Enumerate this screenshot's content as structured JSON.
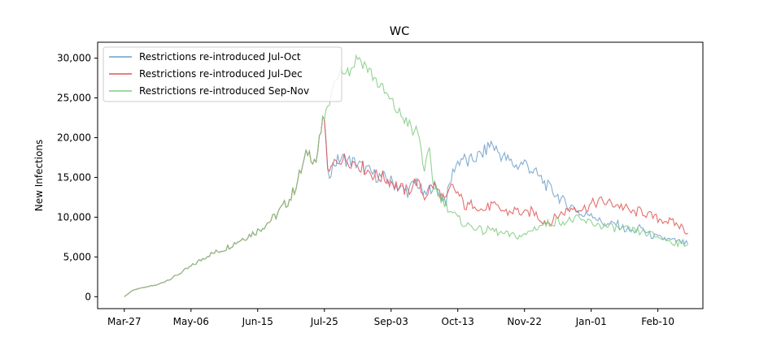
{
  "chart_data": {
    "type": "line",
    "title": "WC",
    "xlabel": "",
    "ylabel": "New Infections",
    "ylim": [
      -1500,
      32000
    ],
    "y_ticks": [
      0,
      5000,
      10000,
      15000,
      20000,
      25000,
      30000
    ],
    "y_tick_labels": [
      "0",
      "5,000",
      "10,000",
      "15,000",
      "20,000",
      "25,000",
      "30,000"
    ],
    "x_tick_labels": [
      "Mar-27",
      "May-06",
      "Jun-15",
      "Jul-25",
      "Sep-03",
      "Oct-13",
      "Nov-22",
      "Jan-01",
      "Feb-10"
    ],
    "x_tick_days": [
      0,
      40,
      80,
      120,
      160,
      200,
      240,
      280,
      320
    ],
    "xlim_days": [
      -16,
      347
    ],
    "legend_position": "top-left",
    "grid": false,
    "series": [
      {
        "name": "Restrictions re-introduced Jul-Oct",
        "color": "#6e9fc9",
        "x": [
          0,
          5,
          10,
          20,
          30,
          40,
          50,
          60,
          70,
          80,
          90,
          100,
          105,
          110,
          115,
          118,
          120,
          122,
          126,
          130,
          135,
          140,
          145,
          150,
          155,
          160,
          165,
          170,
          175,
          180,
          185,
          190,
          193,
          195,
          198,
          200,
          203,
          206,
          210,
          215,
          220,
          225,
          230,
          235,
          240,
          245,
          250,
          255,
          260,
          265,
          270,
          275,
          280,
          285,
          290,
          295,
          300,
          305,
          310,
          315,
          320,
          325,
          330,
          335,
          338
        ],
        "y": [
          0,
          800,
          1100,
          1500,
          2500,
          3800,
          5200,
          6000,
          7200,
          8300,
          10000,
          12500,
          15200,
          18300,
          17000,
          20800,
          22700,
          15200,
          16800,
          17400,
          17100,
          16700,
          16000,
          15300,
          15000,
          14500,
          13700,
          13200,
          14600,
          12600,
          14100,
          12800,
          12000,
          14000,
          16300,
          16900,
          17500,
          16800,
          17400,
          18000,
          19300,
          18000,
          17200,
          16400,
          16900,
          15800,
          14800,
          13600,
          12700,
          11600,
          11200,
          10100,
          10600,
          9500,
          9000,
          9200,
          8500,
          8200,
          8700,
          7800,
          7400,
          7200,
          7000,
          6800,
          6600
        ]
      },
      {
        "name": "Restrictions re-introduced Jul-Dec",
        "color": "#e05555",
        "x": [
          0,
          5,
          10,
          20,
          30,
          40,
          50,
          60,
          70,
          80,
          90,
          100,
          105,
          110,
          115,
          118,
          120,
          122,
          126,
          130,
          135,
          140,
          145,
          150,
          155,
          160,
          165,
          170,
          175,
          180,
          185,
          190,
          193,
          196,
          200,
          205,
          210,
          215,
          220,
          225,
          230,
          235,
          240,
          245,
          250,
          255,
          260,
          265,
          270,
          275,
          280,
          285,
          290,
          295,
          300,
          305,
          310,
          315,
          320,
          325,
          330,
          335,
          338
        ],
        "y": [
          0,
          800,
          1100,
          1500,
          2500,
          3800,
          5200,
          6000,
          7200,
          8300,
          10000,
          12500,
          15200,
          18300,
          17000,
          20800,
          22700,
          15200,
          16800,
          17400,
          17100,
          16700,
          16000,
          15300,
          15000,
          14500,
          13700,
          13200,
          14600,
          12600,
          14100,
          12800,
          12000,
          13800,
          13000,
          11200,
          11800,
          10800,
          11500,
          11000,
          10600,
          10900,
          10300,
          10800,
          9700,
          9300,
          10200,
          10800,
          11300,
          11000,
          11600,
          12000,
          11800,
          11600,
          11200,
          10500,
          10800,
          10200,
          9800,
          9600,
          9200,
          8700,
          8000
        ]
      },
      {
        "name": "Restrictions re-introduced Sep-Nov",
        "color": "#7fcb7f",
        "x": [
          0,
          5,
          10,
          20,
          30,
          40,
          50,
          60,
          70,
          80,
          90,
          100,
          105,
          110,
          115,
          118,
          120,
          122,
          126,
          130,
          135,
          140,
          145,
          150,
          155,
          160,
          165,
          170,
          173,
          176,
          178,
          180,
          183,
          185,
          188,
          190,
          195,
          200,
          205,
          210,
          215,
          220,
          225,
          230,
          235,
          240,
          245,
          250,
          255,
          260,
          265,
          270,
          275,
          280,
          285,
          290,
          295,
          300,
          305,
          310,
          315,
          320,
          325,
          330,
          335,
          338
        ],
        "y": [
          0,
          800,
          1100,
          1500,
          2500,
          3800,
          5200,
          6000,
          7200,
          8300,
          10000,
          12500,
          15200,
          18300,
          17000,
          20800,
          22700,
          23500,
          27000,
          29000,
          28300,
          30200,
          29000,
          27500,
          26000,
          24500,
          23000,
          22000,
          20500,
          21000,
          18500,
          16000,
          18000,
          14500,
          13000,
          12500,
          11000,
          9800,
          9000,
          8800,
          8200,
          8500,
          8000,
          7800,
          7600,
          7700,
          8500,
          9000,
          9200,
          9600,
          9400,
          9800,
          9500,
          9300,
          9000,
          8800,
          8600,
          8500,
          8300,
          8100,
          7900,
          7500,
          7200,
          6800,
          6600,
          6500
        ]
      }
    ]
  }
}
